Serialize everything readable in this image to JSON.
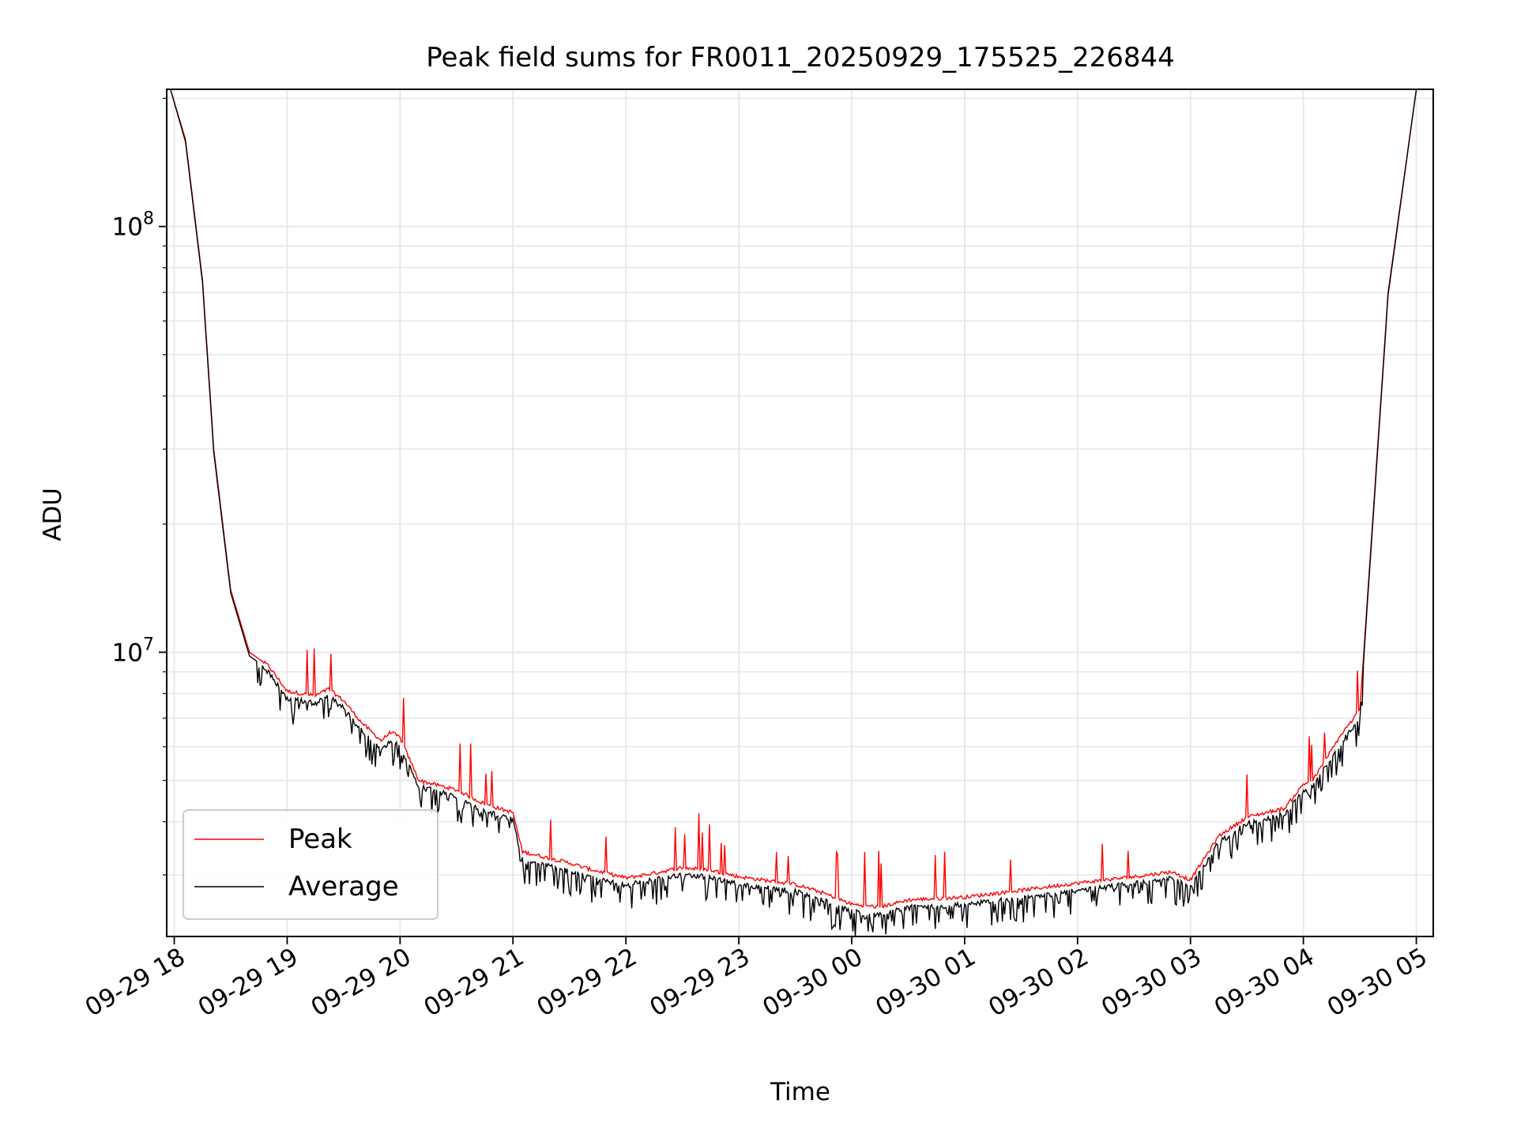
{
  "chart_data": {
    "type": "line",
    "title": "Peak field sums for FR0011_20250929_175525_226844",
    "xlabel": "Time",
    "ylabel": "ADU",
    "yscale": "log",
    "ylim": [
      2150000,
      210000000
    ],
    "xlim": [
      "09-29 17:56",
      "09-30 05:09"
    ],
    "grid": true,
    "legend_position": "lower-left",
    "x_ticks": [
      "09-29 18",
      "09-29 19",
      "09-29 20",
      "09-29 21",
      "09-29 22",
      "09-29 23",
      "09-30 00",
      "09-30 01",
      "09-30 02",
      "09-30 03",
      "09-30 04",
      "09-30 05"
    ],
    "y_ticks": [
      {
        "value": 10000000,
        "base": "10",
        "exp": "7"
      },
      {
        "value": 100000000,
        "base": "10",
        "exp": "8"
      }
    ],
    "series": [
      {
        "name": "Peak",
        "color": "#ff0000",
        "x": [
          "09-29 17:58",
          "09-29 18:06",
          "09-29 18:15",
          "09-29 18:21",
          "09-29 18:30",
          "09-29 18:40",
          "09-29 18:50",
          "09-29 19:00",
          "09-29 19:15",
          "09-29 19:22",
          "09-29 19:30",
          "09-29 19:40",
          "09-29 19:50",
          "09-29 19:55",
          "09-29 20:00",
          "09-29 20:10",
          "09-29 20:30",
          "09-29 20:45",
          "09-29 21:00",
          "09-29 21:05",
          "09-29 21:30",
          "09-29 21:40",
          "09-29 22:00",
          "09-29 22:10",
          "09-29 22:30",
          "09-29 22:45",
          "09-29 23:00",
          "09-29 23:30",
          "09-29 23:45",
          "09-30 00:00",
          "09-30 00:15",
          "09-30 00:30",
          "09-30 01:00",
          "09-30 01:30",
          "09-30 02:00",
          "09-30 02:30",
          "09-30 02:50",
          "09-30 03:00",
          "09-30 03:15",
          "09-30 03:30",
          "09-30 03:50",
          "09-30 04:00",
          "09-30 04:05",
          "09-30 04:20",
          "09-30 04:30",
          "09-30 04:45",
          "09-30 05:00"
        ],
        "values": [
          210000000,
          160000000,
          75000000,
          30000000,
          14000000,
          10000000,
          9300000,
          8100000,
          7900000,
          8200000,
          7700000,
          6800000,
          6200000,
          6500000,
          6300000,
          5000000,
          4750000,
          4400000,
          4200000,
          3400000,
          3200000,
          3100000,
          2950000,
          3000000,
          3120000,
          3080000,
          2970000,
          2850000,
          2720000,
          2560000,
          2520000,
          2620000,
          2660000,
          2760000,
          2870000,
          2970000,
          3050000,
          2920000,
          3700000,
          4100000,
          4300000,
          4900000,
          5000000,
          6400000,
          7300000,
          70000000,
          210000000
        ]
      },
      {
        "name": "Average",
        "color": "#000000",
        "x": [
          "09-29 17:58",
          "09-29 18:06",
          "09-29 18:15",
          "09-29 18:21",
          "09-29 18:30",
          "09-29 18:40",
          "09-29 18:50",
          "09-29 19:00",
          "09-29 19:15",
          "09-29 19:22",
          "09-29 19:30",
          "09-29 19:40",
          "09-29 19:50",
          "09-29 19:55",
          "09-29 20:00",
          "09-29 20:10",
          "09-29 20:30",
          "09-29 20:45",
          "09-29 21:00",
          "09-29 21:05",
          "09-29 21:30",
          "09-29 21:40",
          "09-29 22:00",
          "09-29 22:10",
          "09-29 22:30",
          "09-29 22:45",
          "09-29 23:00",
          "09-29 23:30",
          "09-29 23:45",
          "09-30 00:00",
          "09-30 00:15",
          "09-30 00:30",
          "09-30 01:00",
          "09-30 01:30",
          "09-30 02:00",
          "09-30 02:30",
          "09-30 02:50",
          "09-30 03:00",
          "09-30 03:15",
          "09-30 03:30",
          "09-30 03:50",
          "09-30 04:00",
          "09-30 04:05",
          "09-30 04:20",
          "09-30 04:30",
          "09-30 04:45",
          "09-30 05:00"
        ],
        "values": [
          210000000,
          158000000,
          74000000,
          29500000,
          13800000,
          9800000,
          9100000,
          7900000,
          7700000,
          8000000,
          7500000,
          6600000,
          6000000,
          6300000,
          6100000,
          4900000,
          4650000,
          4300000,
          4100000,
          3300000,
          3100000,
          3000000,
          2880000,
          2930000,
          3050000,
          3010000,
          2900000,
          2780000,
          2650000,
          2490000,
          2450000,
          2550000,
          2590000,
          2690000,
          2800000,
          2900000,
          2980000,
          2850000,
          3620000,
          4020000,
          4220000,
          4800000,
          4900000,
          6200000,
          7100000,
          69000000,
          210000000
        ]
      }
    ]
  }
}
